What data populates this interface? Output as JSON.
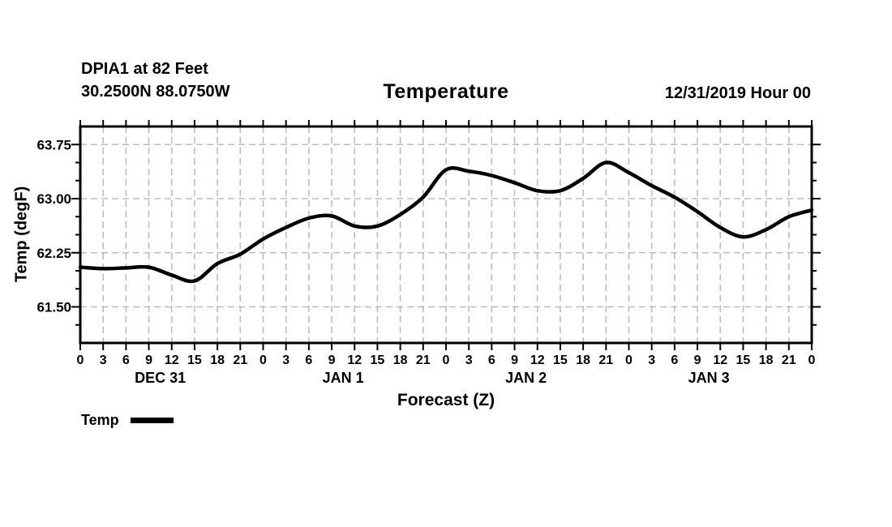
{
  "header": {
    "station_line1": "DPIA1 at 82 Feet",
    "station_coords": "30.2500N 88.0750W",
    "datetime": "12/31/2019 Hour 00"
  },
  "legend": {
    "label": "Temp",
    "swatch_color": "#000000"
  },
  "chart_data": {
    "type": "line",
    "title": "Temperature",
    "xlabel": "Forecast (Z)",
    "ylabel": "Temp (degF)",
    "xlim": [
      0,
      96
    ],
    "ylim": [
      61.0,
      64.0
    ],
    "grid": true,
    "grid_color": "#bdbdbd",
    "line_color": "#000000",
    "x_tick_step_hours": 3,
    "x_tick_labels": [
      "0",
      "3",
      "6",
      "9",
      "12",
      "15",
      "18",
      "21",
      "0",
      "3",
      "6",
      "9",
      "12",
      "15",
      "18",
      "21",
      "0",
      "3",
      "6",
      "9",
      "12",
      "15",
      "18",
      "21",
      "0",
      "3",
      "6",
      "9",
      "12",
      "15",
      "18",
      "21",
      "0"
    ],
    "day_labels": [
      {
        "label": "DEC 31",
        "hour": 10.5
      },
      {
        "label": "JAN 1",
        "hour": 34.5
      },
      {
        "label": "JAN 2",
        "hour": 58.5
      },
      {
        "label": "JAN 3",
        "hour": 82.5
      }
    ],
    "y_major_ticks": [
      61.5,
      62.25,
      63.0,
      63.75
    ],
    "y_major_tick_labels": [
      "61.50",
      "62.25",
      "63.00",
      "63.75"
    ],
    "y_minor_tick_step": 0.25,
    "series": [
      {
        "name": "Temp",
        "x_hours": [
          0,
          3,
          6,
          9,
          12,
          15,
          18,
          21,
          24,
          27,
          30,
          33,
          36,
          39,
          42,
          45,
          48,
          51,
          54,
          57,
          60,
          63,
          66,
          69,
          72,
          75,
          78,
          81,
          84,
          87,
          90,
          93,
          96
        ],
        "values": [
          62.05,
          62.03,
          62.04,
          62.05,
          61.94,
          61.86,
          62.1,
          62.23,
          62.44,
          62.6,
          62.73,
          62.76,
          62.62,
          62.62,
          62.78,
          63.02,
          63.4,
          63.38,
          63.32,
          63.22,
          63.11,
          63.11,
          63.28,
          63.5,
          63.36,
          63.18,
          63.02,
          62.82,
          62.6,
          62.47,
          62.57,
          62.75,
          62.84
        ]
      }
    ]
  }
}
